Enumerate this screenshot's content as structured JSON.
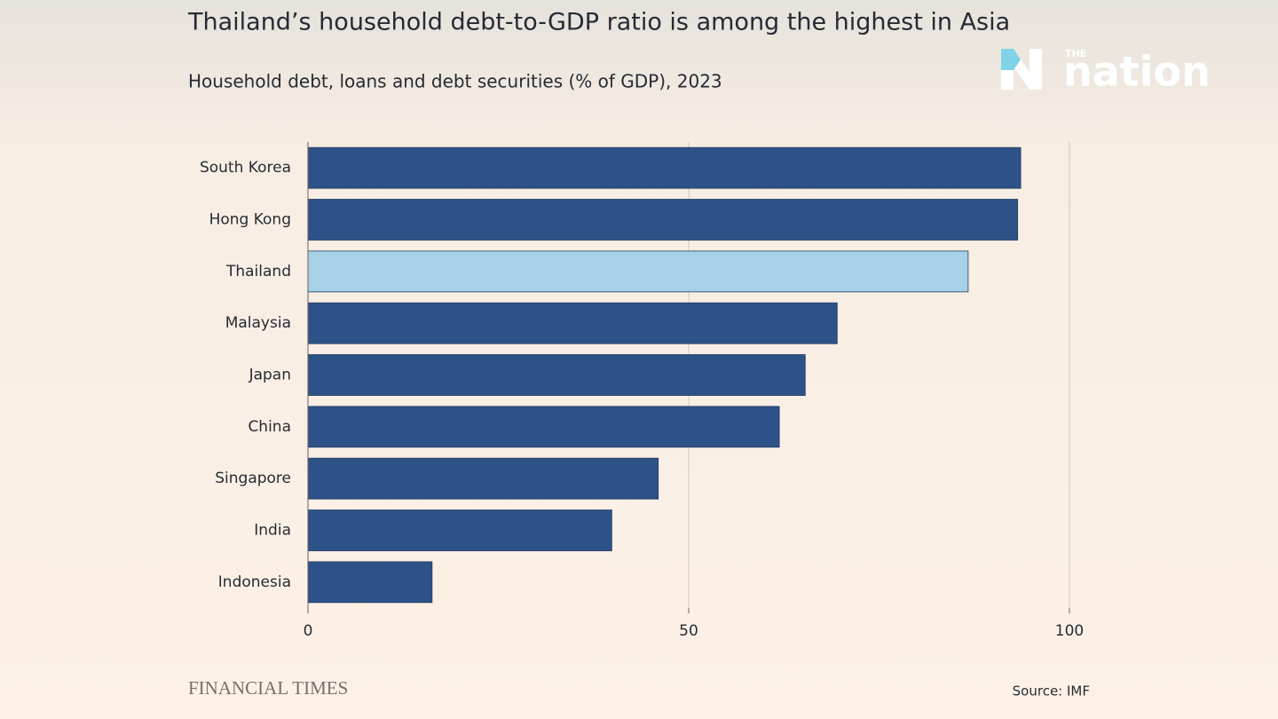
{
  "chart_data": {
    "type": "bar",
    "orientation": "horizontal",
    "title": "Thailand’s household debt-to-GDP ratio is among the highest in Asia",
    "subtitle": "Household debt, loans and debt securities (% of GDP), 2023",
    "categories": [
      "South Korea",
      "Hong Kong",
      "Thailand",
      "Malaysia",
      "Japan",
      "China",
      "Singapore",
      "India",
      "Indonesia"
    ],
    "values": [
      93.6,
      93.2,
      86.7,
      69.5,
      65.3,
      61.9,
      46.0,
      39.9,
      16.3
    ],
    "colors": [
      "#2d5287",
      "#2d5287",
      "#a6d1e6",
      "#2d5287",
      "#2d5287",
      "#2d5287",
      "#2d5287",
      "#2d5287",
      "#2d5287"
    ],
    "xlim": [
      0,
      100
    ],
    "xticks": [
      0,
      50,
      100
    ],
    "grid": true,
    "publisher": "FINANCIAL TIMES",
    "source": "Source: IMF"
  },
  "logo": {
    "small": "THE",
    "name": "nation"
  }
}
